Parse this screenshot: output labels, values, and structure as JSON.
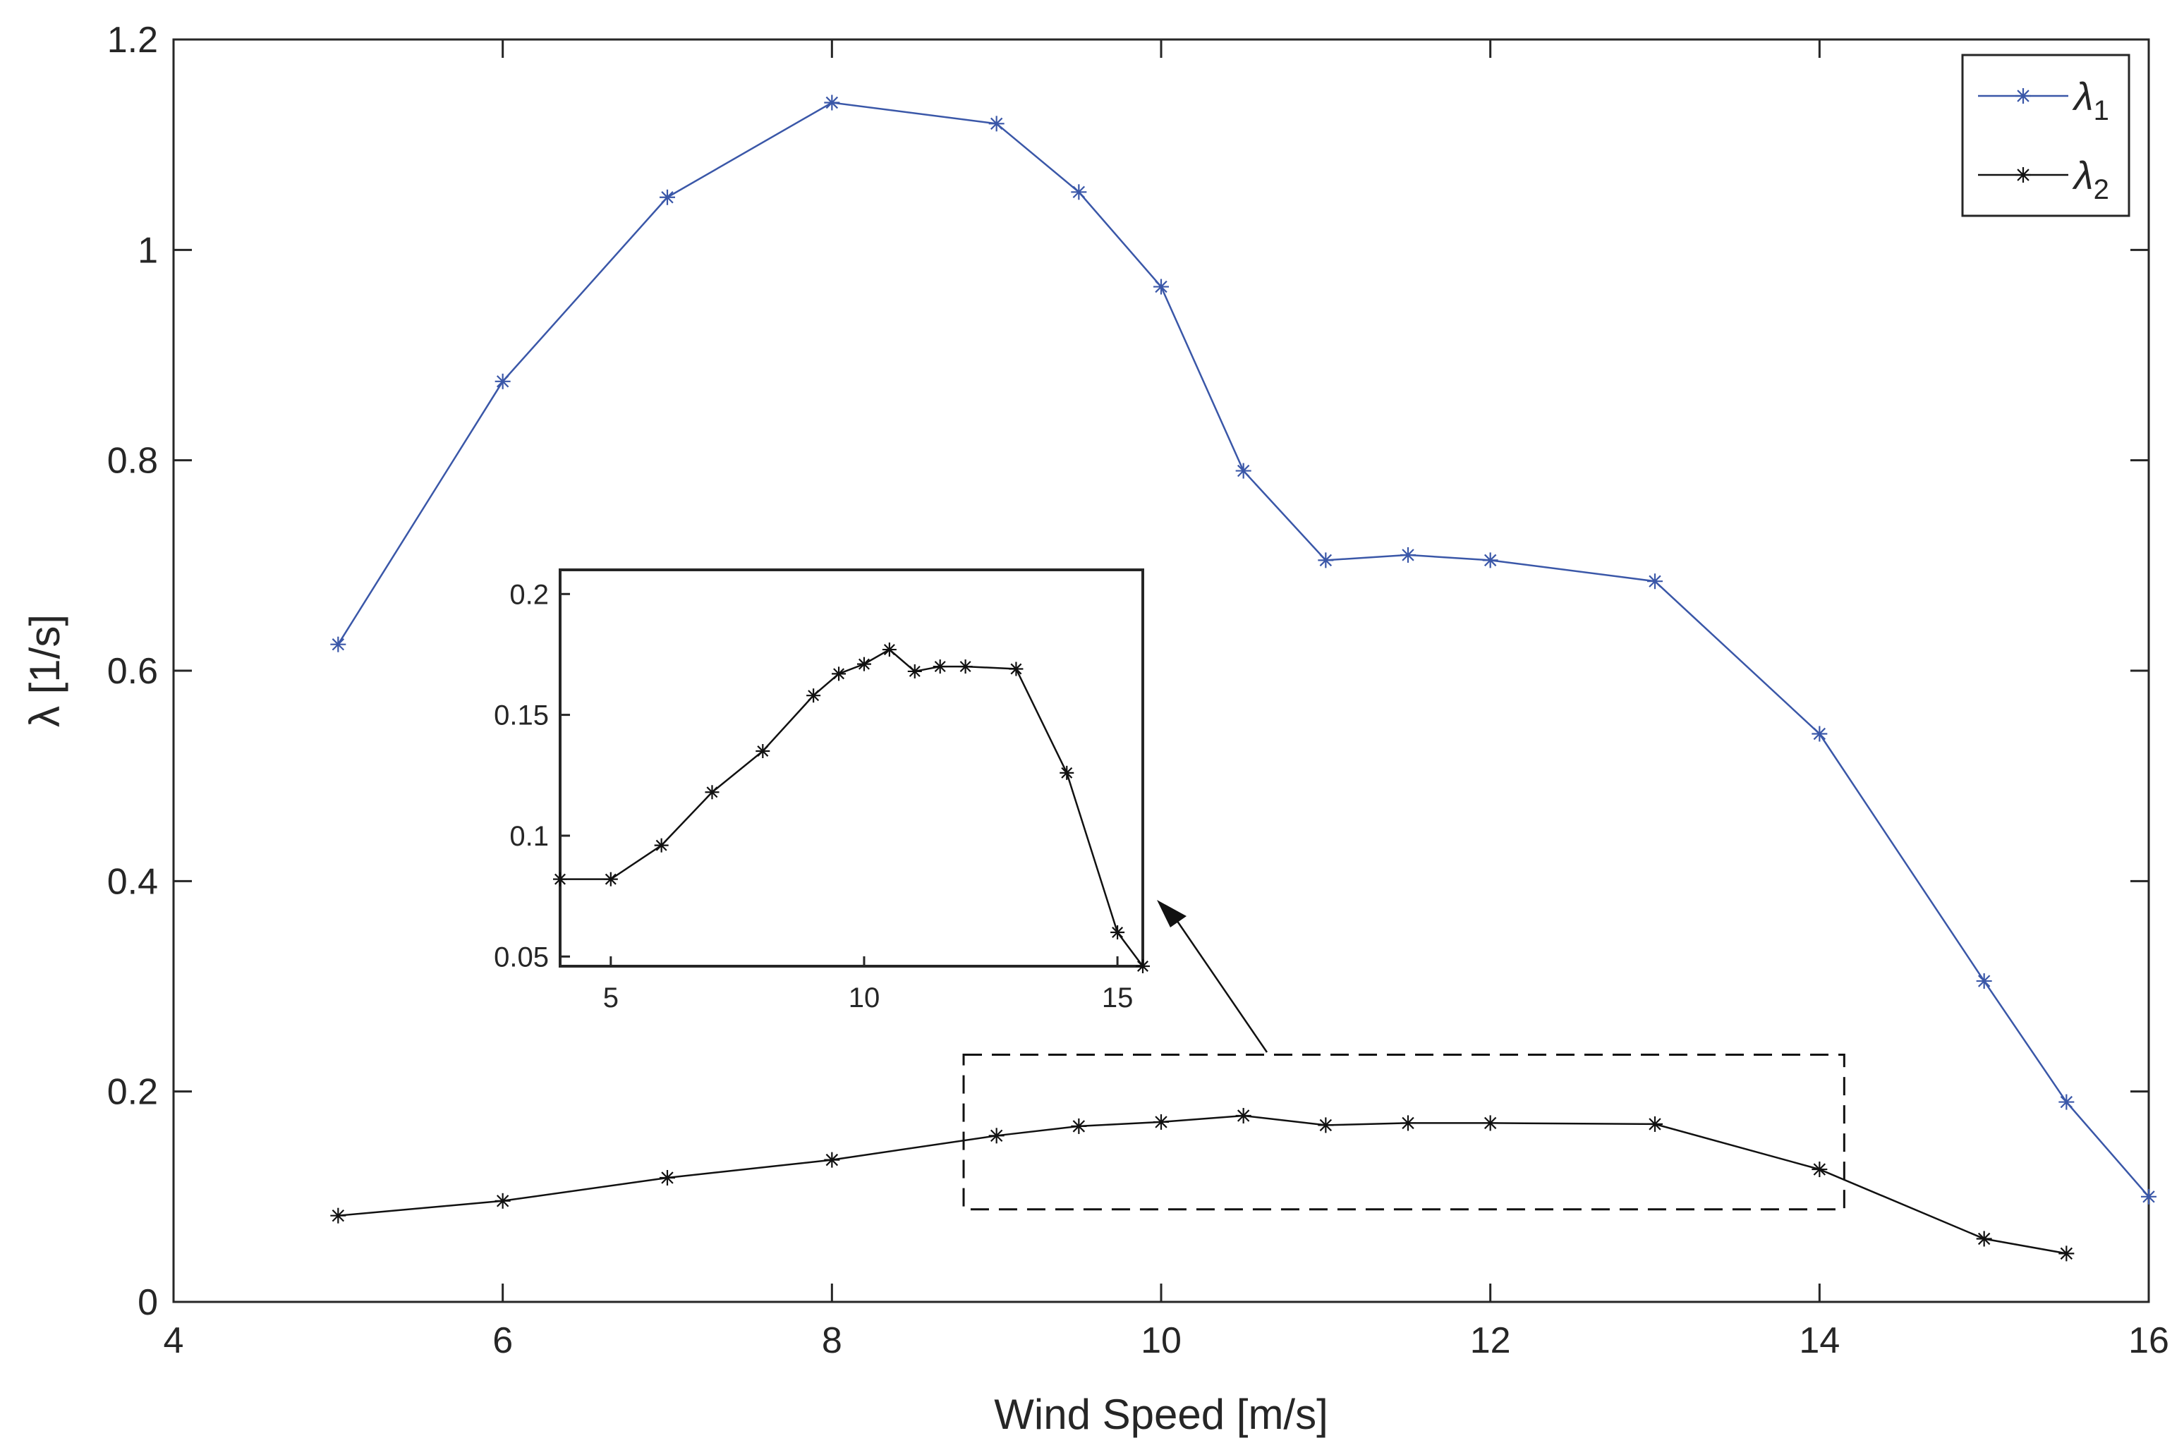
{
  "chart_data": [
    {
      "type": "line",
      "title": "",
      "xlabel": "Wind Speed [m/s]",
      "ylabel": "λ [1/s]",
      "xlim": [
        4,
        16
      ],
      "ylim": [
        0,
        1.2
      ],
      "xticks": [
        "4",
        "6",
        "8",
        "10",
        "12",
        "14",
        "16"
      ],
      "yticks": [
        "0",
        "0.2",
        "0.4",
        "0.6",
        "0.8",
        "1",
        "1.2"
      ],
      "grid": false,
      "legend_position": "top-right",
      "x": [
        5,
        6,
        7,
        8,
        9,
        9.5,
        10,
        10.5,
        11,
        11.5,
        12,
        13,
        14,
        15,
        15.5,
        16
      ],
      "series": [
        {
          "name": "λ1",
          "symbol": "λ",
          "subscript": "1",
          "color": "#3a57a8",
          "marker": "asterisk",
          "x": [
            5,
            6,
            7,
            8,
            9,
            9.5,
            10,
            10.5,
            11,
            11.5,
            12,
            13,
            14,
            15,
            15.5,
            16
          ],
          "values": [
            0.625,
            0.875,
            1.05,
            1.14,
            1.12,
            1.055,
            0.965,
            0.79,
            0.705,
            0.71,
            0.705,
            0.685,
            0.54,
            0.305,
            0.19,
            0.1
          ]
        },
        {
          "name": "λ2",
          "symbol": "λ",
          "subscript": "2",
          "color": "#111111",
          "marker": "asterisk",
          "x": [
            5,
            6,
            7,
            8,
            9,
            9.5,
            10,
            10.5,
            11,
            11.5,
            12,
            13,
            14,
            15,
            15.5
          ],
          "values": [
            0.082,
            0.096,
            0.118,
            0.135,
            0.158,
            0.167,
            0.171,
            0.177,
            0.168,
            0.17,
            0.17,
            0.169,
            0.126,
            0.06,
            0.046
          ]
        }
      ],
      "zoom_box": {
        "xlim": [
          8.8,
          14.15
        ],
        "ylim": [
          0.088,
          0.235
        ]
      }
    },
    {
      "type": "line",
      "title": "",
      "role": "inset-zoom",
      "xlim": [
        4,
        15.5
      ],
      "ylim": [
        0.046,
        0.21
      ],
      "xticks": [
        "5",
        "10",
        "15"
      ],
      "xtick_values": [
        5,
        10,
        15
      ],
      "yticks": [
        "0.05",
        "0.1",
        "0.15",
        "0.2"
      ],
      "ytick_values": [
        0.05,
        0.1,
        0.15,
        0.2
      ],
      "series": [
        {
          "name": "λ2",
          "color": "#111111",
          "marker": "asterisk",
          "x": [
            4,
            5,
            6,
            7,
            8,
            9,
            9.5,
            10,
            10.5,
            11,
            11.5,
            12,
            13,
            14,
            15,
            15.5
          ],
          "values": [
            0.082,
            0.082,
            0.096,
            0.118,
            0.135,
            0.158,
            0.167,
            0.171,
            0.177,
            0.168,
            0.17,
            0.17,
            0.169,
            0.126,
            0.06,
            0.046
          ]
        }
      ]
    }
  ]
}
